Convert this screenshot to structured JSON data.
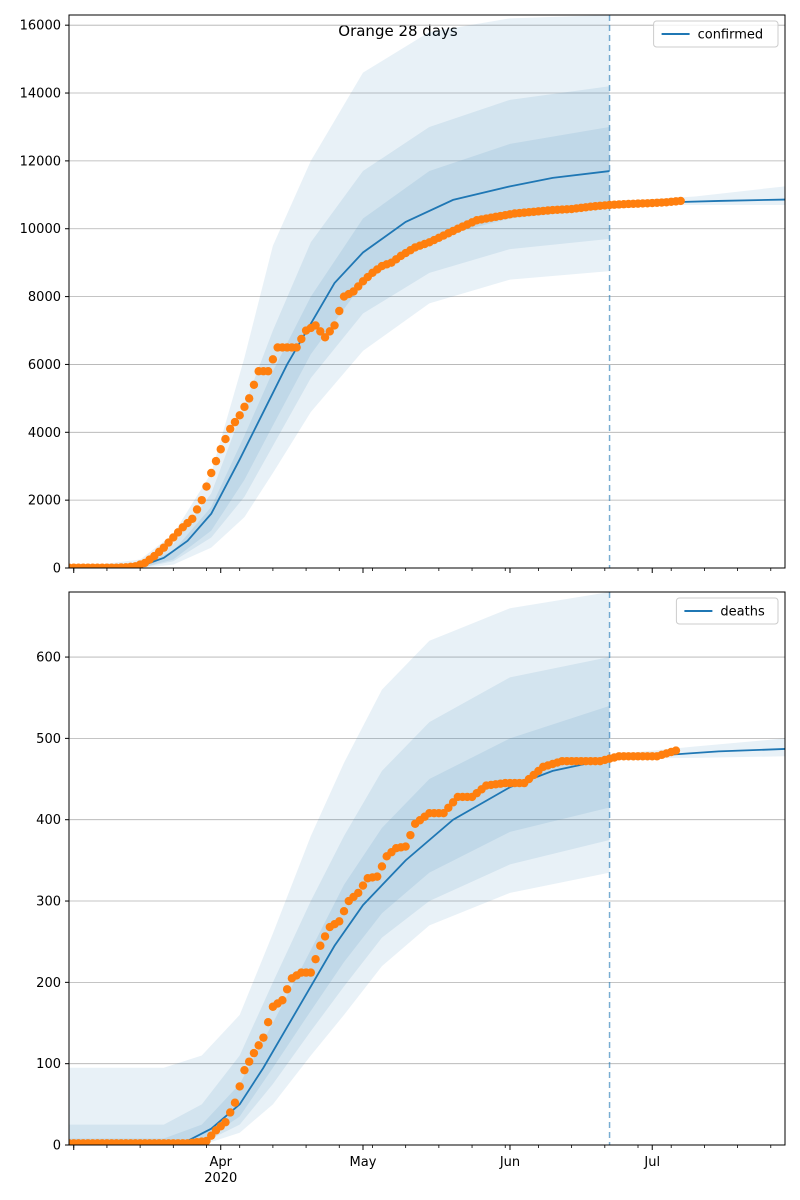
{
  "chart_data": [
    {
      "type": "line",
      "title": "Orange 28 days",
      "legend": {
        "label": "confirmed",
        "placement": "top-right"
      },
      "grid": "y",
      "xlim": [
        "2020-02-29",
        "2020-07-29"
      ],
      "ylim": [
        0,
        16300
      ],
      "yticks": [
        0,
        2000,
        4000,
        6000,
        8000,
        10000,
        12000,
        14000,
        16000
      ],
      "forecast_start": "2020-06-22",
      "colors": {
        "line": "#1f77b4",
        "points": "#ff7f0e",
        "band": "#1f77b4"
      },
      "fit": {
        "x": [
          "2020-02-29",
          "2020-03-10",
          "2020-03-15",
          "2020-03-20",
          "2020-03-25",
          "2020-03-30",
          "2020-04-05",
          "2020-04-10",
          "2020-04-15",
          "2020-04-20",
          "2020-04-25",
          "2020-05-01",
          "2020-05-10",
          "2020-05-20",
          "2020-06-01",
          "2020-06-10",
          "2020-06-22"
        ],
        "y": [
          0,
          0,
          50,
          300,
          800,
          1600,
          3200,
          4600,
          6000,
          7200,
          8400,
          9300,
          10200,
          10850,
          11250,
          11500,
          11700
        ]
      },
      "forecast": {
        "x": [
          "2020-06-22",
          "2020-07-05",
          "2020-07-15",
          "2020-07-29"
        ],
        "y": [
          10750,
          10780,
          10820,
          10860
        ]
      },
      "bands": [
        {
          "name": "95%",
          "x": [
            "2020-02-29",
            "2020-03-15",
            "2020-03-22",
            "2020-03-30",
            "2020-04-06",
            "2020-04-12",
            "2020-04-20",
            "2020-05-01",
            "2020-05-15",
            "2020-06-01",
            "2020-06-22"
          ],
          "upper": [
            0,
            250,
            1000,
            2800,
            6200,
            9500,
            12000,
            14600,
            15800,
            16200,
            16300
          ],
          "lower": [
            0,
            0,
            100,
            600,
            1500,
            2800,
            4600,
            6400,
            7800,
            8500,
            8750
          ]
        },
        {
          "name": "80%",
          "x": [
            "2020-02-29",
            "2020-03-15",
            "2020-03-22",
            "2020-03-30",
            "2020-04-06",
            "2020-04-12",
            "2020-04-20",
            "2020-05-01",
            "2020-05-15",
            "2020-06-01",
            "2020-06-22"
          ],
          "upper": [
            0,
            150,
            700,
            2200,
            4800,
            7000,
            9600,
            11700,
            13000,
            13800,
            14200
          ],
          "lower": [
            0,
            0,
            200,
            900,
            2100,
            3600,
            5600,
            7500,
            8700,
            9400,
            9700
          ]
        },
        {
          "name": "50%",
          "x": [
            "2020-02-29",
            "2020-03-15",
            "2020-03-22",
            "2020-03-30",
            "2020-04-06",
            "2020-04-12",
            "2020-04-20",
            "2020-05-01",
            "2020-05-15",
            "2020-06-01",
            "2020-06-22"
          ],
          "upper": [
            0,
            100,
            500,
            1800,
            3900,
            5800,
            8000,
            10300,
            11700,
            12500,
            13000
          ],
          "lower": [
            0,
            0,
            250,
            1100,
            2600,
            4200,
            6300,
            8400,
            9700,
            10300,
            10600
          ]
        },
        {
          "name": "forecast",
          "x": [
            "2020-06-22",
            "2020-07-10",
            "2020-07-29"
          ],
          "upper": [
            10800,
            10950,
            11250
          ],
          "lower": [
            10700,
            10700,
            10700
          ]
        }
      ],
      "observed": {
        "x": [
          "2020-02-29",
          "2020-03-02",
          "2020-03-04",
          "2020-03-06",
          "2020-03-08",
          "2020-03-10",
          "2020-03-12",
          "2020-03-14",
          "2020-03-16",
          "2020-03-18",
          "2020-03-20",
          "2020-03-22",
          "2020-03-24",
          "2020-03-26",
          "2020-03-28",
          "2020-03-30",
          "2020-04-01",
          "2020-04-03",
          "2020-04-05",
          "2020-04-07",
          "2020-04-09",
          "2020-04-11",
          "2020-04-13",
          "2020-04-15",
          "2020-04-17",
          "2020-04-19",
          "2020-04-21",
          "2020-04-23",
          "2020-04-25",
          "2020-04-27",
          "2020-04-29",
          "2020-05-01",
          "2020-05-03",
          "2020-05-05",
          "2020-05-07",
          "2020-05-09",
          "2020-05-12",
          "2020-05-15",
          "2020-05-18",
          "2020-05-21",
          "2020-05-25",
          "2020-05-29",
          "2020-06-02",
          "2020-06-06",
          "2020-06-10",
          "2020-06-14",
          "2020-06-18",
          "2020-06-22",
          "2020-06-26",
          "2020-06-30",
          "2020-07-04",
          "2020-07-07"
        ],
        "y": [
          10,
          10,
          10,
          10,
          10,
          10,
          20,
          50,
          150,
          350,
          600,
          900,
          1200,
          1450,
          2000,
          2800,
          3500,
          4100,
          4500,
          5000,
          5800,
          5800,
          6500,
          6500,
          6500,
          7000,
          7150,
          6800,
          7150,
          8000,
          8150,
          8450,
          8700,
          8900,
          9000,
          9200,
          9450,
          9600,
          9800,
          10000,
          10250,
          10350,
          10450,
          10500,
          10550,
          10580,
          10650,
          10700,
          10730,
          10750,
          10780,
          10820
        ]
      }
    },
    {
      "type": "line",
      "title": "",
      "legend": {
        "label": "deaths",
        "placement": "top-right"
      },
      "grid": "y",
      "xlim": [
        "2020-02-29",
        "2020-07-29"
      ],
      "ylim": [
        0,
        680
      ],
      "yticks": [
        0,
        100,
        200,
        300,
        400,
        500,
        600
      ],
      "xticks": [
        {
          "date": "2020-04-01",
          "label": "Apr"
        },
        {
          "date": "2020-05-01",
          "label": "May"
        },
        {
          "date": "2020-06-01",
          "label": "Jun"
        },
        {
          "date": "2020-07-01",
          "label": "Jul"
        }
      ],
      "year_label": "2020",
      "forecast_start": "2020-06-22",
      "colors": {
        "line": "#1f77b4",
        "points": "#ff7f0e",
        "band": "#1f77b4"
      },
      "fit": {
        "x": [
          "2020-02-29",
          "2020-03-20",
          "2020-03-25",
          "2020-03-30",
          "2020-04-05",
          "2020-04-10",
          "2020-04-15",
          "2020-04-20",
          "2020-04-25",
          "2020-05-01",
          "2020-05-10",
          "2020-05-20",
          "2020-06-01",
          "2020-06-10",
          "2020-06-22"
        ],
        "y": [
          0,
          0,
          5,
          20,
          50,
          95,
          145,
          195,
          245,
          295,
          350,
          400,
          440,
          460,
          475
        ]
      },
      "forecast": {
        "x": [
          "2020-06-22",
          "2020-07-05",
          "2020-07-15",
          "2020-07-29"
        ],
        "y": [
          477,
          480,
          484,
          487
        ]
      },
      "bands": [
        {
          "name": "95%",
          "x": [
            "2020-02-29",
            "2020-03-20",
            "2020-03-28",
            "2020-04-05",
            "2020-04-12",
            "2020-04-20",
            "2020-04-27",
            "2020-05-05",
            "2020-05-15",
            "2020-06-01",
            "2020-06-22"
          ],
          "upper": [
            95,
            95,
            110,
            160,
            260,
            380,
            470,
            560,
            620,
            660,
            680
          ],
          "lower": [
            0,
            0,
            0,
            15,
            50,
            110,
            160,
            220,
            270,
            310,
            335
          ]
        },
        {
          "name": "80%",
          "x": [
            "2020-02-29",
            "2020-03-20",
            "2020-03-28",
            "2020-04-05",
            "2020-04-12",
            "2020-04-20",
            "2020-04-27",
            "2020-05-05",
            "2020-05-15",
            "2020-06-01",
            "2020-06-22"
          ],
          "upper": [
            25,
            25,
            50,
            110,
            200,
            300,
            380,
            460,
            520,
            575,
            600
          ],
          "lower": [
            0,
            0,
            2,
            25,
            75,
            140,
            195,
            255,
            300,
            345,
            375
          ]
        },
        {
          "name": "50%",
          "x": [
            "2020-02-29",
            "2020-03-20",
            "2020-03-28",
            "2020-04-05",
            "2020-04-12",
            "2020-04-20",
            "2020-04-27",
            "2020-05-05",
            "2020-05-15",
            "2020-06-01",
            "2020-06-22"
          ],
          "upper": [
            8,
            8,
            25,
            75,
            150,
            240,
            320,
            390,
            450,
            500,
            540
          ],
          "lower": [
            0,
            0,
            4,
            35,
            95,
            165,
            225,
            285,
            335,
            385,
            415
          ]
        },
        {
          "name": "forecast",
          "x": [
            "2020-06-22",
            "2020-07-10",
            "2020-07-29"
          ],
          "upper": [
            480,
            490,
            500
          ],
          "lower": [
            475,
            476,
            478
          ]
        }
      ],
      "observed": {
        "x": [
          "2020-02-29",
          "2020-03-05",
          "2020-03-10",
          "2020-03-15",
          "2020-03-20",
          "2020-03-25",
          "2020-03-29",
          "2020-03-31",
          "2020-04-02",
          "2020-04-04",
          "2020-04-06",
          "2020-04-08",
          "2020-04-10",
          "2020-04-12",
          "2020-04-14",
          "2020-04-16",
          "2020-04-18",
          "2020-04-20",
          "2020-04-22",
          "2020-04-24",
          "2020-04-26",
          "2020-04-28",
          "2020-04-30",
          "2020-05-02",
          "2020-05-04",
          "2020-05-06",
          "2020-05-08",
          "2020-05-10",
          "2020-05-12",
          "2020-05-15",
          "2020-05-18",
          "2020-05-21",
          "2020-05-24",
          "2020-05-27",
          "2020-05-31",
          "2020-06-04",
          "2020-06-08",
          "2020-06-12",
          "2020-06-16",
          "2020-06-20",
          "2020-06-24",
          "2020-06-28",
          "2020-07-02",
          "2020-07-06"
        ],
        "y": [
          2,
          2,
          2,
          2,
          2,
          2,
          5,
          18,
          28,
          52,
          92,
          113,
          132,
          170,
          178,
          205,
          212,
          212,
          245,
          268,
          275,
          300,
          310,
          328,
          330,
          355,
          365,
          367,
          395,
          408,
          408,
          428,
          428,
          442,
          445,
          445,
          465,
          472,
          472,
          472,
          478,
          478,
          478,
          485
        ]
      }
    }
  ]
}
